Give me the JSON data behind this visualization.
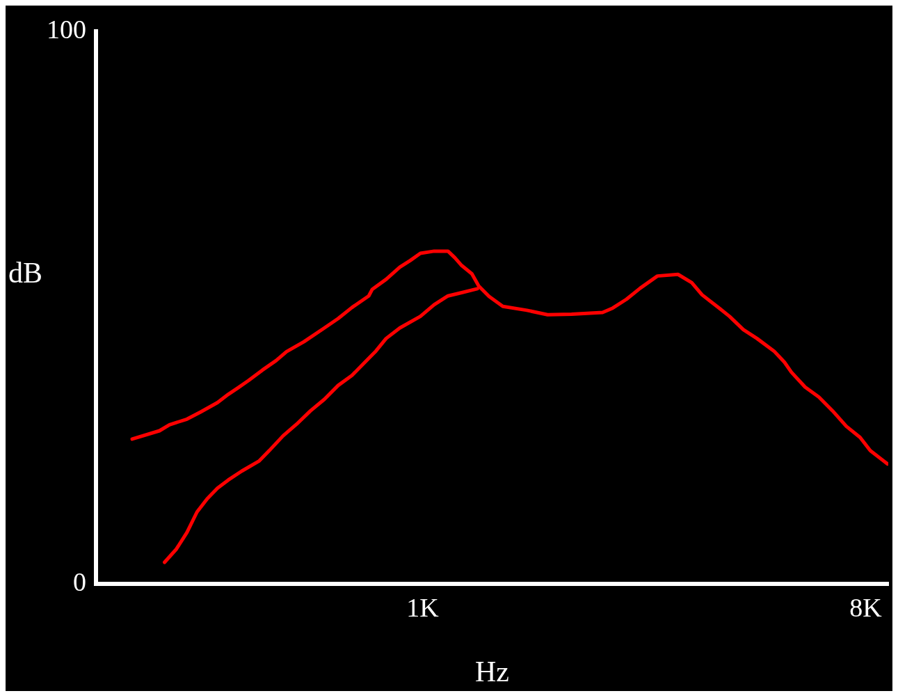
{
  "chart_data": {
    "type": "line",
    "xlabel": "Hz",
    "ylabel": "dB",
    "log": "x",
    "xlim": [
      216,
      8900
    ],
    "xticks": [
      {
        "value": 1000,
        "label": "1K"
      },
      {
        "value": 8000,
        "label": "8K"
      }
    ],
    "ylim": [
      0,
      100
    ],
    "yticks": [
      0,
      100
    ],
    "grid": false,
    "legend": false,
    "marker": "none",
    "line_style": "solid",
    "series": [
      {
        "color": "#ff0000",
        "x": [
          256,
          291,
          305,
          331,
          353,
          382,
          402,
          421,
          442,
          472,
          503,
          528,
          573,
          631,
          673,
          718,
          777,
          790,
          843,
          899,
          944,
          990,
          1056,
          1127,
          1164,
          1202,
          1261,
          1302,
          1367,
          1458,
          1632,
          1799,
          2013,
          2328,
          2442,
          2605,
          2778,
          3012,
          3317,
          3538,
          3714,
          4025,
          4225,
          4507,
          4806,
          5209,
          5468,
          5649,
          6025,
          6425,
          6854,
          7311,
          7797,
          8180,
          8870
        ],
        "values": [
          26.2,
          27.7,
          28.8,
          29.8,
          31.1,
          32.8,
          34.3,
          35.5,
          36.8,
          38.7,
          40.4,
          42.0,
          43.8,
          46.3,
          48.0,
          50.0,
          52.1,
          53.3,
          55.1,
          57.3,
          58.5,
          59.8,
          60.2,
          60.2,
          59.0,
          57.6,
          56.1,
          53.9,
          52.0,
          50.2,
          49.5,
          48.7,
          48.8,
          49.1,
          49.9,
          51.5,
          53.5,
          55.7,
          56.0,
          54.5,
          52.3,
          49.9,
          48.4,
          46.0,
          44.4,
          42.1,
          40.1,
          38.3,
          35.6,
          33.8,
          31.3,
          28.5,
          26.5,
          24.1,
          21.7
        ]
      },
      {
        "color": "#ff0000",
        "x": [
          298,
          315,
          331,
          347,
          364,
          382,
          402,
          428,
          464,
          487,
          520,
          554,
          591,
          631,
          673,
          718,
          765,
          803,
          843,
          899,
          990,
          1056,
          1127,
          1202,
          1294
        ],
        "values": [
          3.9,
          6.3,
          9.3,
          13.0,
          15.4,
          17.3,
          18.8,
          20.4,
          22.2,
          24.1,
          26.8,
          28.9,
          31.3,
          33.4,
          35.9,
          37.7,
          40.2,
          42.1,
          44.4,
          46.3,
          48.4,
          50.5,
          52.1,
          52.7,
          53.4
        ]
      }
    ]
  }
}
